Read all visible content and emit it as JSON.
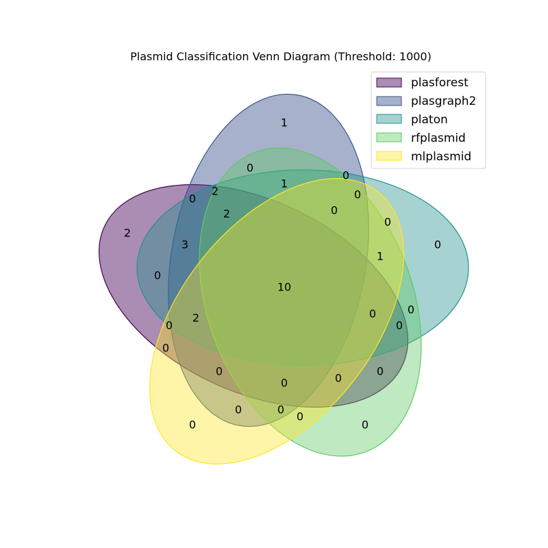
{
  "title": "Plasmid Classification Venn Diagram (Threshold: 1000)",
  "sets": [
    {
      "name": "plasforest",
      "color": "#440154"
    },
    {
      "name": "plasgraph2",
      "color": "#3b528b"
    },
    {
      "name": "platon",
      "color": "#21918c"
    },
    {
      "name": "rfplasmid",
      "color": "#5ec962"
    },
    {
      "name": "mlplasmid",
      "color": "#fde725"
    }
  ],
  "region_counts": {
    "A": "2",
    "B": "1",
    "C": "0",
    "D": "0",
    "E": "0",
    "AB": "3",
    "AC": "0",
    "AD": "0",
    "AE": "0",
    "BC": "0",
    "BD": "0",
    "BE": "0",
    "CD": "0",
    "CE": "0",
    "DE": "0",
    "ABC": "0",
    "ABD": "0",
    "ABE": "0",
    "ACD": "0",
    "ACE": "0",
    "ADE": "0",
    "BCD": "0",
    "BCE": "0",
    "BDE": "0",
    "CDE": "0",
    "ABCD": "2",
    "ABCE": "2",
    "ABDE": "2",
    "ACDE": "1",
    "BCDE": "1",
    "ABCDE": "10"
  }
}
